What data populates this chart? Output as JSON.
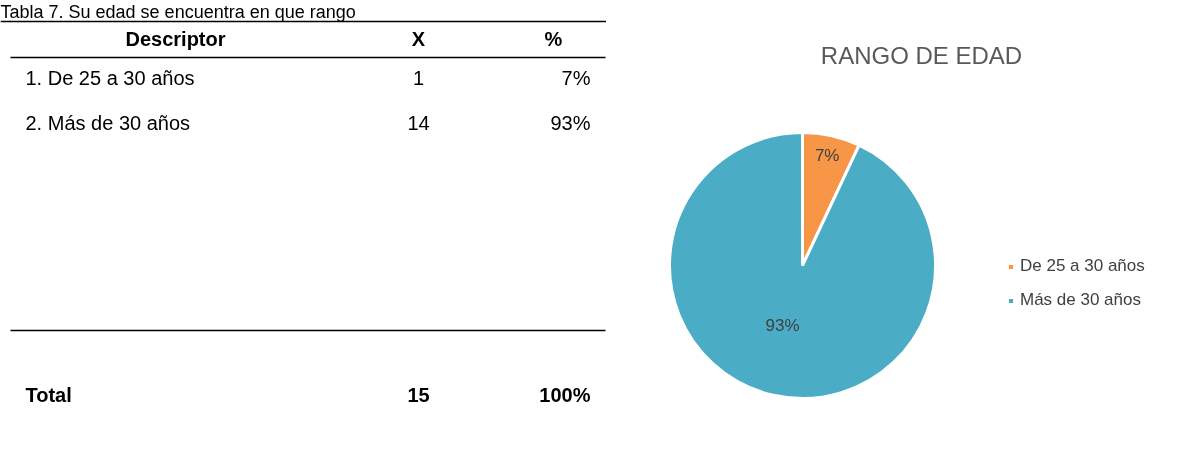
{
  "chart_data": [
    {
      "type": "other",
      "title": "Tabla 7. Su edad se encuentra en que rango",
      "annotations": [
        "Descriptor",
        "X",
        "%",
        "1. De 25 a 30 años",
        "1",
        "7%",
        "2. Más de 30 años",
        "14",
        "93%",
        "Total",
        "15",
        "100%"
      ]
    },
    {
      "type": "pie",
      "title": "RANGO DE EDAD",
      "categories": [
        "De 25 a 30 años",
        "Más de 30 años"
      ],
      "values": [
        7,
        93
      ],
      "colors": [
        "#f79646",
        "#4bacc6"
      ],
      "value_labels": [
        "7%",
        "93%"
      ],
      "legend": "right"
    }
  ]
}
